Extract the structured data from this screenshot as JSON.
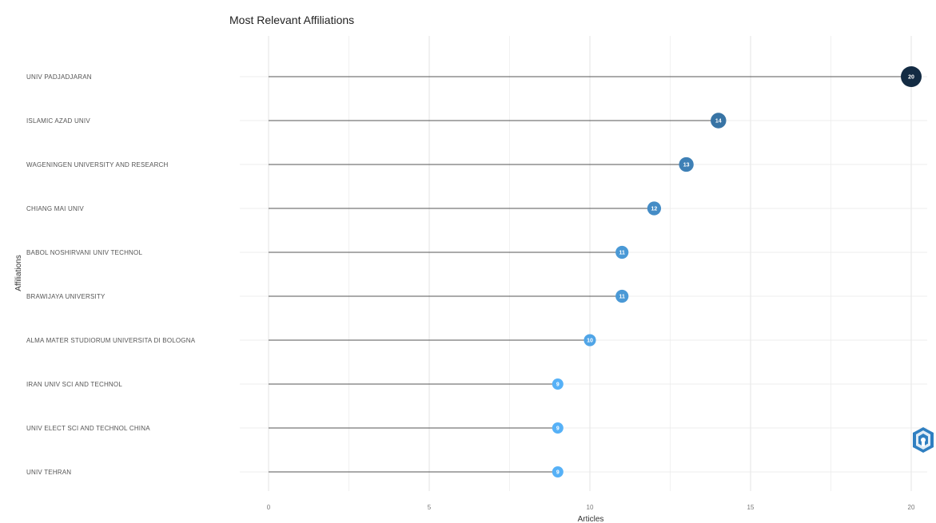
{
  "chart_data": {
    "type": "lollipop",
    "title": "Most Relevant Affiliations",
    "xlabel": "Articles",
    "ylabel": "Affiliations",
    "xlim": [
      0,
      20
    ],
    "xticks": [
      0,
      5,
      10,
      15,
      20
    ],
    "grid": true,
    "categories": [
      "UNIV PADJADJARAN",
      "ISLAMIC AZAD UNIV",
      "WAGENINGEN UNIVERSITY AND RESEARCH",
      "CHIANG MAI UNIV",
      "BABOL NOSHIRVANI UNIV TECHNOL",
      "BRAWIJAYA UNIVERSITY",
      "ALMA MATER STUDIORUM UNIVERSITA DI BOLOGNA",
      "IRAN UNIV SCI AND TECHNOL",
      "UNIV ELECT SCI AND TECHNOL CHINA",
      "UNIV TEHRAN"
    ],
    "values": [
      20,
      14,
      13,
      12,
      11,
      11,
      10,
      9,
      9,
      9
    ],
    "color_scale": {
      "low": "#56B1F7",
      "high": "#132B43"
    },
    "line_color": "#555555"
  },
  "logo": {
    "icon": "bibliometrix-logo-icon",
    "color": "#2f7fc1"
  }
}
